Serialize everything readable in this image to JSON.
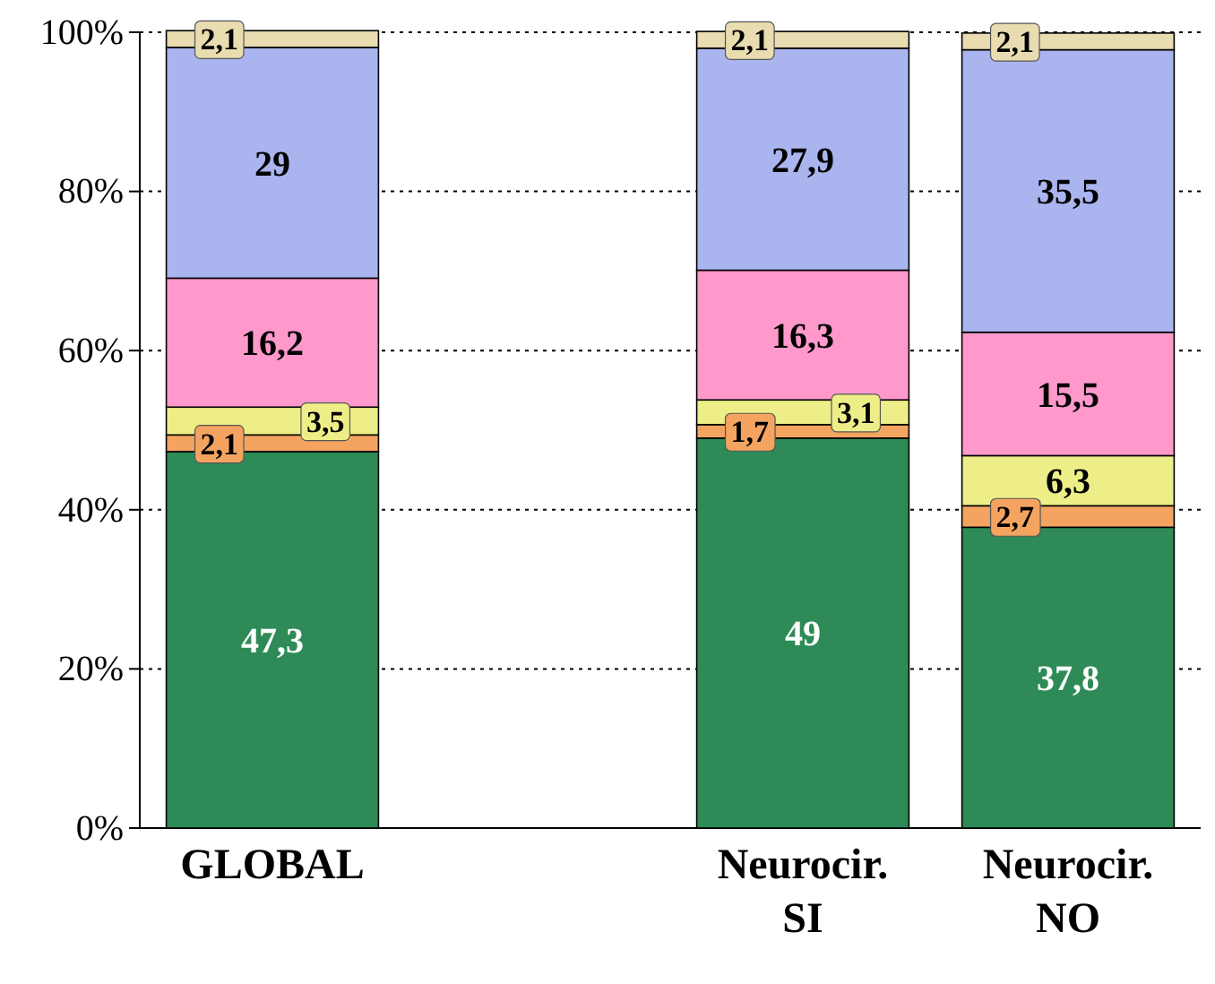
{
  "chart_data": {
    "type": "bar",
    "stacked": true,
    "categories": [
      "GLOBAL",
      null,
      "Neurocir. SI",
      "Neurocir. NO"
    ],
    "series": [
      {
        "color": "#2e8b57",
        "values": [
          47.3,
          null,
          49,
          37.8
        ],
        "value_labels": [
          "47,3",
          null,
          "49",
          "37,8"
        ]
      },
      {
        "color": "#f4a460",
        "values": [
          2.1,
          null,
          1.7,
          2.7
        ],
        "value_labels": [
          "2,1",
          null,
          "1,7",
          "2,7"
        ]
      },
      {
        "color": "#eeee88",
        "values": [
          3.5,
          null,
          3.1,
          6.3
        ],
        "value_labels": [
          "3,5",
          null,
          "3,1",
          "6,3"
        ]
      },
      {
        "color": "#ff99cc",
        "values": [
          16.2,
          null,
          16.3,
          15.5
        ],
        "value_labels": [
          "16,2",
          null,
          "16,3",
          "15,5"
        ]
      },
      {
        "color": "#aab4ee",
        "values": [
          29,
          null,
          27.9,
          35.5
        ],
        "value_labels": [
          "29",
          null,
          "27,9",
          "35,5"
        ]
      },
      {
        "color": "#e8dcb0",
        "values": [
          2.1,
          null,
          2.1,
          2.1
        ],
        "value_labels": [
          "2,1",
          null,
          "2,1",
          "2,1"
        ]
      }
    ],
    "ylim": [
      0,
      100
    ],
    "yticks": [
      {
        "value": 0,
        "label": "0%"
      },
      {
        "value": 20,
        "label": "20%"
      },
      {
        "value": 40,
        "label": "40%"
      },
      {
        "value": 60,
        "label": "60%"
      },
      {
        "value": 80,
        "label": "80%"
      },
      {
        "value": 100,
        "label": "100%"
      }
    ],
    "grid": "y"
  }
}
